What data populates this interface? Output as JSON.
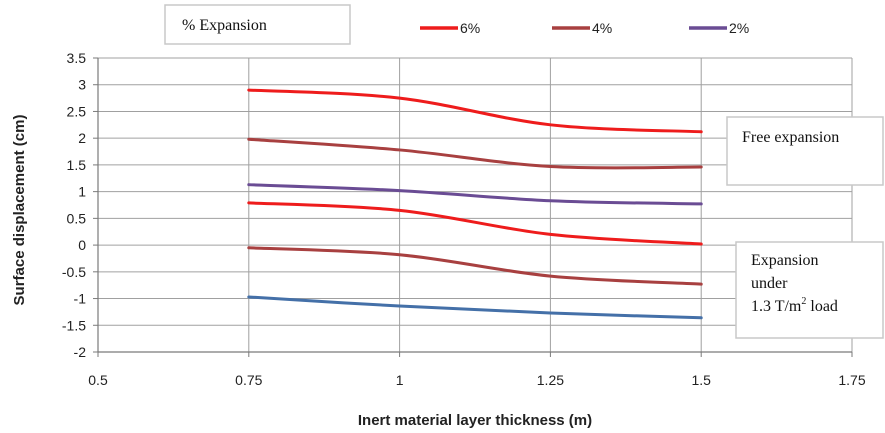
{
  "chart_data": {
    "type": "line",
    "xlabel": "Inert material layer thickness (m)",
    "ylabel": "Surface displacement (cm)",
    "xlim": [
      0.5,
      1.75
    ],
    "ylim": [
      -2,
      3.5
    ],
    "x_ticks": [
      "0.5",
      "0.75",
      "1",
      "1.25",
      "1.5",
      "1.75"
    ],
    "y_ticks": [
      "3.5",
      "3",
      "2.5",
      "2",
      "1.5",
      "1",
      "0.5",
      "0",
      "-0.5",
      "-1",
      "-1.5",
      "-2"
    ],
    "grid": true,
    "legend_position": "top",
    "legend_title": "% Expansion",
    "legend": [
      {
        "name": "6%",
        "color": "#ee1c1c"
      },
      {
        "name": "4%",
        "color": "#a84040"
      },
      {
        "name": "2%",
        "color": "#6a4c94"
      }
    ],
    "x": [
      0.75,
      1.0,
      1.25,
      1.5
    ],
    "series": [
      {
        "name": "6%",
        "group": "free",
        "color": "#ee1c1c",
        "values": [
          2.9,
          2.75,
          2.25,
          2.12
        ]
      },
      {
        "name": "4%",
        "group": "free",
        "color": "#a84040",
        "values": [
          1.98,
          1.78,
          1.47,
          1.46
        ]
      },
      {
        "name": "2%",
        "group": "free",
        "color": "#6a4c94",
        "values": [
          1.13,
          1.02,
          0.83,
          0.77
        ]
      },
      {
        "name": "6%",
        "group": "loaded",
        "color": "#ee1c1c",
        "values": [
          0.79,
          0.65,
          0.2,
          0.02
        ]
      },
      {
        "name": "4%",
        "group": "loaded",
        "color": "#a84040",
        "values": [
          -0.05,
          -0.18,
          -0.58,
          -0.73
        ]
      },
      {
        "name": "2%",
        "group": "loaded",
        "color": "#4470a8",
        "values": [
          -0.97,
          -1.14,
          -1.27,
          -1.36
        ]
      }
    ],
    "annotations": {
      "free": "Free expansion",
      "loaded_line1": "Expansion",
      "loaded_line2": "under",
      "loaded_line3": "1.3 T/m",
      "loaded_sup": "2",
      "loaded_line3_end": " load"
    }
  }
}
